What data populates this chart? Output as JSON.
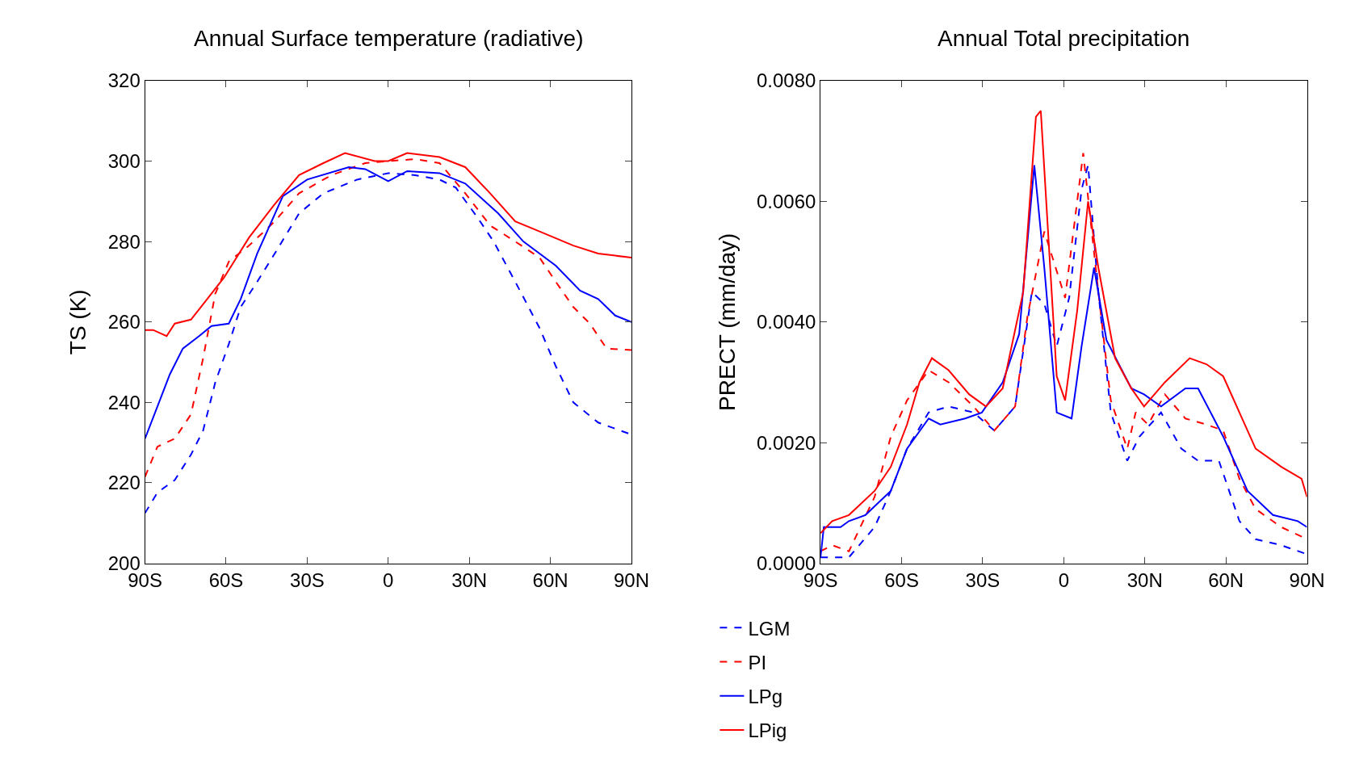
{
  "chart_data": [
    {
      "type": "line",
      "title": "Annual Surface temperature (radiative)",
      "ylabel": "TS (K)",
      "legend": "bottom",
      "xlim": [
        -90,
        90
      ],
      "xticks": [
        {
          "value": -90,
          "label": "90S"
        },
        {
          "value": -60,
          "label": "60S"
        },
        {
          "value": -30,
          "label": "30S"
        },
        0,
        {
          "value": 30,
          "label": "30N"
        },
        {
          "value": 60,
          "label": "60N"
        },
        {
          "value": 90,
          "label": "90N"
        }
      ],
      "ylim": [
        200,
        320
      ],
      "yticks": [
        200,
        220,
        240,
        260,
        280,
        300,
        320
      ],
      "series": [
        {
          "name": "LGM",
          "color": "#0000ff",
          "line_style": "dashed",
          "x": [
            -90,
            -85.4,
            -79,
            -73,
            -68.5,
            -64,
            -59,
            -54.6,
            -48.5,
            -42,
            -33,
            -24,
            -11.5,
            0,
            10,
            19,
            25,
            33,
            39,
            47,
            56,
            62,
            68.5,
            77.7,
            90
          ],
          "values": [
            212.5,
            217.6,
            220.7,
            227,
            233,
            245,
            254.5,
            263.7,
            270,
            277,
            287,
            292,
            295.4,
            297,
            296.5,
            295.4,
            293.4,
            286,
            280,
            270,
            258.5,
            249,
            240,
            235,
            232
          ]
        },
        {
          "name": "PI",
          "color": "#ff0000",
          "line_style": "dashed",
          "x": [
            -90,
            -85.4,
            -79,
            -73,
            -68.5,
            -64,
            -59,
            -51.5,
            -42,
            -33,
            -21,
            -8.5,
            0,
            10,
            19,
            28.5,
            37.7,
            47,
            56,
            62,
            68.5,
            74.6,
            80.8,
            90
          ],
          "values": [
            221.5,
            229,
            231,
            237,
            251,
            267,
            275,
            279,
            285,
            292,
            296.5,
            299.5,
            300,
            300.5,
            299.5,
            292,
            284,
            280,
            276,
            270,
            263.7,
            259.6,
            253.4,
            253
          ]
        },
        {
          "name": "LPg",
          "color": "#0000ff",
          "line_style": "solid",
          "x": [
            -90,
            -85.4,
            -80.8,
            -76,
            -70,
            -65.4,
            -59,
            -54.6,
            -48.5,
            -39,
            -30,
            -14.6,
            -8.5,
            0,
            7,
            19,
            28.5,
            40.7,
            50,
            62,
            71,
            77.7,
            84,
            90
          ],
          "values": [
            231,
            239,
            247,
            253.4,
            256.5,
            259,
            259.6,
            265.7,
            277,
            291.3,
            295.4,
            298.5,
            298,
            295,
            297.5,
            297,
            294.4,
            287,
            280,
            274,
            267.8,
            265.7,
            261.6,
            260
          ]
        },
        {
          "name": "LPig",
          "color": "#ff0000",
          "line_style": "solid",
          "x": [
            -90,
            -87,
            -82,
            -79,
            -73,
            -67,
            -60.8,
            -51.5,
            -42,
            -33,
            -24,
            -16,
            -5,
            0,
            7,
            19,
            28.5,
            37.7,
            47,
            56,
            68.5,
            77.7,
            90
          ],
          "values": [
            258,
            258,
            256.5,
            259.6,
            260.6,
            265.7,
            271,
            281,
            289.3,
            296.5,
            299.5,
            302,
            300,
            300,
            302,
            301,
            298.5,
            292,
            285,
            282.5,
            279,
            277,
            276
          ]
        }
      ]
    },
    {
      "type": "line",
      "title": "Annual Total precipitation",
      "ylabel": "PRECT (mm/day)",
      "xlim": [
        -90,
        90
      ],
      "xticks": [
        {
          "value": -90,
          "label": "90S"
        },
        {
          "value": -60,
          "label": "60S"
        },
        {
          "value": -30,
          "label": "30S"
        },
        0,
        {
          "value": 30,
          "label": "30N"
        },
        {
          "value": 60,
          "label": "60N"
        },
        {
          "value": 90,
          "label": "90N"
        }
      ],
      "ylim": [
        0,
        0.008
      ],
      "yticks": [
        {
          "value": 0,
          "label": "0.0000"
        },
        {
          "value": 0.002,
          "label": "0.0020"
        },
        {
          "value": 0.004,
          "label": "0.0040"
        },
        {
          "value": 0.006,
          "label": "0.0060"
        },
        {
          "value": 0.008,
          "label": "0.0080"
        }
      ],
      "series": [
        {
          "color": "#0000ff",
          "line_style": "dashed",
          "x": [
            -90,
            -79.5,
            -70,
            -64,
            -58,
            -50,
            -42.6,
            -33.4,
            -25.7,
            -18,
            -11.8,
            -7.2,
            -2.6,
            2,
            6.6,
            9,
            12.8,
            17.4,
            23.5,
            28,
            36,
            43.5,
            49.7,
            57.4,
            65,
            71,
            80.5,
            90
          ],
          "values": [
            0.0001,
            0.0001,
            0.0006,
            0.0012,
            0.0019,
            0.0025,
            0.0026,
            0.0025,
            0.0022,
            0.0026,
            0.0045,
            0.0043,
            0.0036,
            0.0044,
            0.0062,
            0.0066,
            0.0045,
            0.0025,
            0.0017,
            0.0021,
            0.0025,
            0.0019,
            0.0017,
            0.0017,
            0.0007,
            0.0004,
            0.0003,
            0.00015
          ]
        },
        {
          "color": "#ff0000",
          "line_style": "dashed",
          "x": [
            -90,
            -85.7,
            -79.5,
            -70,
            -64,
            -58,
            -50,
            -42.6,
            -33.4,
            -25.7,
            -18,
            -13.4,
            -7.2,
            0.5,
            7.2,
            12.8,
            17.4,
            23.5,
            26.6,
            31.2,
            37.4,
            45,
            52.8,
            59,
            65,
            71,
            80.5,
            90
          ],
          "values": [
            0.0002,
            0.0003,
            0.0002,
            0.0011,
            0.0021,
            0.0027,
            0.0032,
            0.003,
            0.0026,
            0.0022,
            0.0026,
            0.0041,
            0.0055,
            0.0044,
            0.0068,
            0.0045,
            0.0027,
            0.0019,
            0.0025,
            0.0023,
            0.0028,
            0.0024,
            0.0023,
            0.0022,
            0.0014,
            0.0009,
            0.0006,
            0.0004
          ]
        },
        {
          "color": "#0000ff",
          "line_style": "solid",
          "x": [
            -90,
            -88.8,
            -82.6,
            -79.5,
            -73.4,
            -64,
            -58,
            -50,
            -45.7,
            -36.5,
            -30.3,
            -22.6,
            -16.5,
            -10.9,
            -7.2,
            -2.6,
            2.9,
            6.6,
            11.2,
            15.8,
            25,
            29.7,
            36,
            45,
            49.7,
            59,
            68,
            77.4,
            86.6,
            90
          ],
          "values": [
            0.0001,
            0.0006,
            0.0006,
            0.0007,
            0.0008,
            0.0012,
            0.0019,
            0.0024,
            0.0023,
            0.0024,
            0.0025,
            0.003,
            0.0038,
            0.0066,
            0.0049,
            0.0025,
            0.0024,
            0.0036,
            0.0049,
            0.0037,
            0.0029,
            0.0028,
            0.0026,
            0.0029,
            0.0029,
            0.0021,
            0.0012,
            0.0008,
            0.0007,
            0.0006
          ]
        },
        {
          "color": "#ff0000",
          "line_style": "solid",
          "x": [
            -90,
            -85.7,
            -79.5,
            -70,
            -64,
            -58,
            -53.4,
            -48.8,
            -42.6,
            -35,
            -28.8,
            -22.6,
            -15,
            -10.3,
            -8.5,
            -2.6,
            0.5,
            5,
            9,
            12.8,
            19,
            25,
            29.7,
            37.4,
            46.6,
            52.8,
            59,
            65,
            71,
            80.5,
            88,
            90
          ],
          "values": [
            0.0005,
            0.0007,
            0.0008,
            0.0012,
            0.0016,
            0.0023,
            0.003,
            0.0034,
            0.0032,
            0.0028,
            0.0026,
            0.0029,
            0.0045,
            0.0074,
            0.0075,
            0.0031,
            0.0027,
            0.0042,
            0.006,
            0.0049,
            0.0034,
            0.0029,
            0.0026,
            0.003,
            0.0034,
            0.0033,
            0.0031,
            0.0025,
            0.0019,
            0.0016,
            0.0014,
            0.0011
          ]
        }
      ]
    }
  ]
}
